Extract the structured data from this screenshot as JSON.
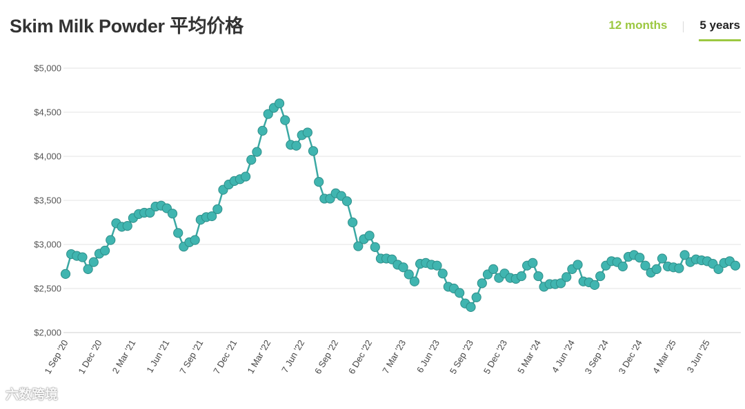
{
  "header": {
    "title": "Skim Milk Powder 平均价格",
    "tabs": [
      {
        "label": "12 months",
        "active": false
      },
      {
        "label": "5 years",
        "active": true
      }
    ]
  },
  "watermark": "六数跨境",
  "colors": {
    "series": "#3aa8a3",
    "marker_fill": "#40b5b0",
    "accent": "#9cc841",
    "grid": "#e3e3e3"
  },
  "chart_data": {
    "type": "line",
    "title": "Skim Milk Powder 平均价格",
    "ylim": [
      2000,
      5000
    ],
    "y_ticks": [
      2000,
      2500,
      3000,
      3500,
      4000,
      4500,
      5000
    ],
    "y_tick_labels": [
      "$2,000",
      "$2,500",
      "$3,000",
      "$3,500",
      "$4,000",
      "$4,500",
      "$5,000"
    ],
    "x_tick_labels": [
      "1 Sep '20",
      "1 Dec '20",
      "2 Mar '21",
      "1 Jun '21",
      "7 Sep '21",
      "7 Dec '21",
      "1 Mar '22",
      "7 Jun '22",
      "6 Sep '22",
      "6 Dec '22",
      "7 Mar '23",
      "6 Jun '23",
      "5 Sep '23",
      "5 Dec '23",
      "5 Mar '24",
      "4 Jun '24",
      "3 Sep '24",
      "3 Dec '24",
      "4 Mar '25",
      "3 Jun '25"
    ],
    "x_tick_positions": [
      0,
      6,
      12,
      18,
      24,
      30,
      36,
      42,
      48,
      54,
      60,
      66,
      72,
      78,
      84,
      90,
      96,
      102,
      108,
      114
    ],
    "grid": true,
    "legend": "none",
    "series": [
      {
        "values": [
          2665,
          2890,
          2870,
          2855,
          2720,
          2800,
          2895,
          2930,
          3050,
          3240,
          3200,
          3210,
          3300,
          3345,
          3360,
          3360,
          3430,
          3440,
          3410,
          3350,
          3130,
          2975,
          3025,
          3050,
          3280,
          3310,
          3320,
          3400,
          3620,
          3680,
          3720,
          3740,
          3770,
          3960,
          4050,
          4290,
          4480,
          4550,
          4600,
          4410,
          4130,
          4120,
          4240,
          4270,
          4060,
          3710,
          3520,
          3520,
          3580,
          3550,
          3490,
          3250,
          2980,
          3060,
          3100,
          2970,
          2840,
          2840,
          2830,
          2770,
          2740,
          2660,
          2580,
          2780,
          2790,
          2770,
          2760,
          2670,
          2520,
          2500,
          2450,
          2330,
          2290,
          2400,
          2560,
          2660,
          2720,
          2620,
          2670,
          2620,
          2610,
          2640,
          2760,
          2790,
          2640,
          2520,
          2550,
          2550,
          2560,
          2630,
          2720,
          2770,
          2580,
          2570,
          2540,
          2640,
          2760,
          2810,
          2800,
          2750,
          2860,
          2880,
          2850,
          2760,
          2680,
          2720,
          2840,
          2750,
          2740,
          2730,
          2880,
          2800,
          2830,
          2820,
          2810,
          2780,
          2720,
          2790,
          2810,
          2760
        ]
      }
    ]
  }
}
